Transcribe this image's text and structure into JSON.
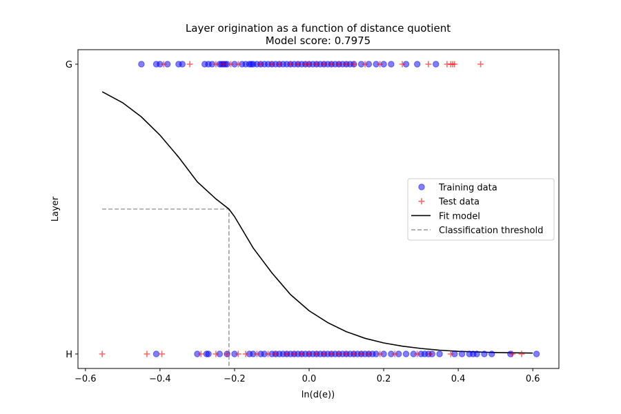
{
  "chart_data": {
    "type": "scatter",
    "title": "Layer origination as a function of distance quotient",
    "subtitle": "Model score: 0.7975",
    "xlabel": "ln(d(e))",
    "ylabel": "Layer",
    "xlim": [
      -0.62,
      0.67
    ],
    "xticks": [
      -0.6,
      -0.4,
      -0.2,
      0.0,
      0.2,
      0.4,
      0.6
    ],
    "xtick_labels": [
      "−0.6",
      "−0.4",
      "−0.2",
      "0.0",
      "0.2",
      "0.4",
      "0.6"
    ],
    "ylim": [
      -0.05,
      1.05
    ],
    "yticks": [
      0,
      1
    ],
    "ytick_labels": [
      "H",
      "G"
    ],
    "grid": false,
    "legend_position": "center-right",
    "colors": {
      "training": "#0000ff",
      "test": "#ff0000",
      "fit": "#000000",
      "threshold": "#a0a0a0"
    },
    "series": [
      {
        "name": "Training data",
        "marker": "circle",
        "y": 1,
        "x": [
          -0.45,
          -0.41,
          -0.4,
          -0.38,
          -0.35,
          -0.34,
          -0.28,
          -0.27,
          -0.26,
          -0.24,
          -0.235,
          -0.23,
          -0.225,
          -0.22,
          -0.2,
          -0.18,
          -0.17,
          -0.16,
          -0.155,
          -0.15,
          -0.14,
          -0.13,
          -0.12,
          -0.11,
          -0.1,
          -0.09,
          -0.08,
          -0.07,
          -0.06,
          -0.05,
          -0.04,
          -0.03,
          -0.02,
          -0.01,
          0.0,
          0.01,
          0.02,
          0.03,
          0.04,
          0.05,
          0.06,
          0.07,
          0.08,
          0.09,
          0.1,
          0.11,
          0.12,
          0.14,
          0.16,
          0.18,
          0.2,
          0.22,
          0.26,
          0.29,
          0.34
        ]
      },
      {
        "name": "Test data",
        "marker": "plus",
        "y": 1,
        "x": [
          -0.39,
          -0.32,
          -0.25,
          -0.23,
          -0.21,
          -0.19,
          -0.13,
          -0.1,
          -0.08,
          -0.05,
          -0.03,
          -0.01,
          0.0,
          0.02,
          0.04,
          0.06,
          0.08,
          0.1,
          0.12,
          0.15,
          0.19,
          0.25,
          0.32,
          0.37,
          0.38,
          0.385,
          0.39,
          0.46
        ]
      },
      {
        "name": "Training data",
        "marker": "circle",
        "y": 0,
        "x": [
          -0.41,
          -0.3,
          -0.275,
          -0.27,
          -0.24,
          -0.22,
          -0.2,
          -0.16,
          -0.15,
          -0.13,
          -0.12,
          -0.1,
          -0.09,
          -0.08,
          -0.07,
          -0.06,
          -0.05,
          -0.04,
          -0.03,
          -0.02,
          -0.01,
          0.0,
          0.01,
          0.02,
          0.03,
          0.04,
          0.05,
          0.06,
          0.07,
          0.08,
          0.09,
          0.1,
          0.11,
          0.12,
          0.13,
          0.14,
          0.15,
          0.16,
          0.17,
          0.18,
          0.2,
          0.22,
          0.24,
          0.26,
          0.28,
          0.3,
          0.31,
          0.32,
          0.33,
          0.35,
          0.39,
          0.41,
          0.43,
          0.44,
          0.45,
          0.47,
          0.49,
          0.54,
          0.61
        ]
      },
      {
        "name": "Test data",
        "marker": "plus",
        "y": 0,
        "x": [
          -0.555,
          -0.435,
          -0.395,
          -0.29,
          -0.25,
          -0.22,
          -0.19,
          -0.17,
          -0.14,
          -0.11,
          -0.09,
          -0.06,
          -0.04,
          -0.02,
          0.0,
          0.02,
          0.04,
          0.06,
          0.08,
          0.1,
          0.12,
          0.14,
          0.16,
          0.19,
          0.23,
          0.29,
          0.325,
          0.38,
          0.545,
          0.57
        ]
      }
    ],
    "fit_model": {
      "name": "Fit model",
      "x": [
        -0.555,
        -0.5,
        -0.45,
        -0.4,
        -0.35,
        -0.3,
        -0.25,
        -0.215,
        -0.2,
        -0.15,
        -0.1,
        -0.05,
        0.0,
        0.05,
        0.1,
        0.15,
        0.2,
        0.25,
        0.3,
        0.35,
        0.4,
        0.45,
        0.5,
        0.55,
        0.6
      ],
      "y": [
        0.905,
        0.867,
        0.818,
        0.755,
        0.679,
        0.594,
        0.535,
        0.5,
        0.474,
        0.366,
        0.28,
        0.205,
        0.149,
        0.108,
        0.077,
        0.054,
        0.038,
        0.027,
        0.019,
        0.013,
        0.009,
        0.007,
        0.005,
        0.004,
        0.003
      ]
    },
    "threshold": {
      "name": "Classification threshold",
      "x": -0.215,
      "y": 0.5,
      "x_start": -0.555
    }
  }
}
